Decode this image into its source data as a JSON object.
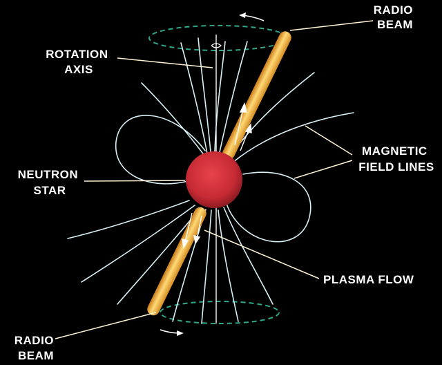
{
  "labels": {
    "radio_beam_top": [
      "RADIO",
      "BEAM"
    ],
    "rotation_axis": [
      "ROTATION",
      "AXIS"
    ],
    "magnetic_field_lines": [
      "MAGNETIC",
      "FIELD LINES"
    ],
    "neutron_star": [
      "NEUTRON",
      "STAR"
    ],
    "plasma_flow": [
      "PLASMA FLOW"
    ],
    "radio_beam_bottom": [
      "RADIO",
      "BEAM"
    ]
  },
  "colors": {
    "background": "#000000",
    "star": "#d8323a",
    "beam": "#f4b63e",
    "field_lines": "#d8f0f6",
    "rotation_ring": "#2fa88a",
    "text": "#ffffff"
  }
}
